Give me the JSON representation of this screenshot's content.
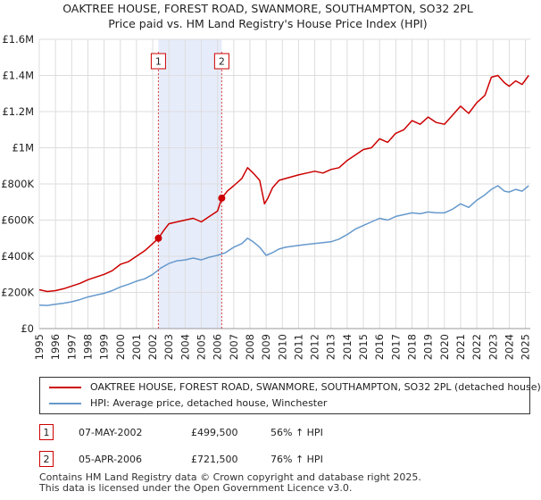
{
  "chart_data": {
    "type": "line",
    "title": "OAKTREE HOUSE, FOREST ROAD, SWANMORE, SOUTHAMPTON, SO32 2PL",
    "subtitle": "Price paid vs. HM Land Registry's House Price Index (HPI)",
    "xlabel": "",
    "ylabel": "",
    "xlim": [
      1995,
      2025.3
    ],
    "ylim": [
      0,
      1600000
    ],
    "grid": true,
    "x_ticks": [
      1995,
      1996,
      1997,
      1998,
      1999,
      2000,
      2001,
      2002,
      2003,
      2004,
      2005,
      2006,
      2007,
      2008,
      2009,
      2010,
      2011,
      2012,
      2013,
      2014,
      2015,
      2016,
      2017,
      2018,
      2019,
      2020,
      2021,
      2022,
      2023,
      2024,
      2025
    ],
    "x_tick_labels": [
      "1995",
      "1996",
      "1997",
      "1998",
      "1999",
      "2000",
      "2001",
      "2002",
      "2003",
      "2004",
      "2005",
      "2006",
      "2007",
      "2008",
      "2009",
      "2010",
      "2011",
      "2012",
      "2013",
      "2014",
      "2015",
      "2016",
      "2017",
      "2018",
      "2019",
      "2020",
      "2021",
      "2022",
      "2023",
      "2024",
      "2025"
    ],
    "y_ticks": [
      0,
      200000,
      400000,
      600000,
      800000,
      1000000,
      1200000,
      1400000,
      1600000
    ],
    "y_tick_labels": [
      "£0",
      "£200K",
      "£400K",
      "£600K",
      "£800K",
      "£1M",
      "£1.2M",
      "£1.4M",
      "£1.6M"
    ],
    "shaded_region": [
      2002.35,
      2006.26
    ],
    "series": [
      {
        "name": "OAKTREE HOUSE, FOREST ROAD, SWANMORE, SOUTHAMPTON, SO32 2PL (detached house)",
        "color": "#cc0000",
        "x": [
          1995.0,
          1995.5,
          1996.0,
          1996.5,
          1997.0,
          1997.5,
          1998.0,
          1998.5,
          1999.0,
          1999.5,
          2000.0,
          2000.5,
          2001.0,
          2001.5,
          2002.0,
          2002.35,
          2002.7,
          2003.0,
          2003.5,
          2004.0,
          2004.5,
          2005.0,
          2005.5,
          2006.0,
          2006.26,
          2006.6,
          2007.0,
          2007.5,
          2007.85,
          2008.2,
          2008.6,
          2008.9,
          2009.1,
          2009.4,
          2009.8,
          2010.2,
          2010.6,
          2011.0,
          2011.5,
          2012.0,
          2012.5,
          2013.0,
          2013.5,
          2014.0,
          2014.5,
          2015.0,
          2015.5,
          2016.0,
          2016.5,
          2017.0,
          2017.5,
          2018.0,
          2018.5,
          2019.0,
          2019.5,
          2020.0,
          2020.5,
          2021.0,
          2021.5,
          2022.0,
          2022.5,
          2022.9,
          2023.3,
          2023.7,
          2024.0,
          2024.4,
          2024.8,
          2025.2
        ],
        "y": [
          215000,
          205000,
          210000,
          220000,
          235000,
          250000,
          270000,
          285000,
          300000,
          320000,
          355000,
          370000,
          400000,
          430000,
          470000,
          499500,
          545000,
          580000,
          590000,
          600000,
          610000,
          590000,
          620000,
          650000,
          721500,
          760000,
          790000,
          830000,
          890000,
          860000,
          820000,
          690000,
          720000,
          780000,
          820000,
          830000,
          840000,
          850000,
          860000,
          870000,
          860000,
          880000,
          890000,
          930000,
          960000,
          990000,
          1000000,
          1050000,
          1030000,
          1080000,
          1100000,
          1150000,
          1130000,
          1170000,
          1140000,
          1130000,
          1180000,
          1230000,
          1190000,
          1250000,
          1290000,
          1390000,
          1400000,
          1360000,
          1340000,
          1370000,
          1350000,
          1400000
        ]
      },
      {
        "name": "HPI: Average price, detached house, Winchester",
        "color": "#6699cc",
        "x": [
          1995.0,
          1995.5,
          1996.0,
          1996.5,
          1997.0,
          1997.5,
          1998.0,
          1998.5,
          1999.0,
          1999.5,
          2000.0,
          2000.5,
          2001.0,
          2001.5,
          2002.0,
          2002.5,
          2003.0,
          2003.5,
          2004.0,
          2004.5,
          2005.0,
          2005.5,
          2006.0,
          2006.5,
          2007.0,
          2007.5,
          2007.85,
          2008.2,
          2008.6,
          2009.0,
          2009.4,
          2009.8,
          2010.2,
          2010.6,
          2011.0,
          2011.5,
          2012.0,
          2012.5,
          2013.0,
          2013.5,
          2014.0,
          2014.5,
          2015.0,
          2015.5,
          2016.0,
          2016.5,
          2017.0,
          2017.5,
          2018.0,
          2018.5,
          2019.0,
          2019.5,
          2020.0,
          2020.5,
          2021.0,
          2021.5,
          2022.0,
          2022.5,
          2022.9,
          2023.3,
          2023.7,
          2024.0,
          2024.4,
          2024.8,
          2025.2
        ],
        "y": [
          130000,
          128000,
          135000,
          140000,
          148000,
          160000,
          175000,
          185000,
          195000,
          210000,
          230000,
          245000,
          262000,
          275000,
          300000,
          335000,
          360000,
          375000,
          380000,
          390000,
          380000,
          395000,
          405000,
          420000,
          450000,
          470000,
          500000,
          480000,
          450000,
          405000,
          420000,
          440000,
          450000,
          455000,
          460000,
          465000,
          470000,
          475000,
          480000,
          495000,
          520000,
          550000,
          570000,
          590000,
          610000,
          600000,
          620000,
          630000,
          640000,
          635000,
          645000,
          640000,
          640000,
          660000,
          690000,
          670000,
          710000,
          740000,
          770000,
          790000,
          760000,
          755000,
          770000,
          760000,
          790000
        ]
      }
    ],
    "markers": [
      {
        "label": "1",
        "x": 2002.35,
        "y": 499500
      },
      {
        "label": "2",
        "x": 2006.26,
        "y": 721500
      }
    ]
  },
  "legend": {
    "line1": "OAKTREE HOUSE, FOREST ROAD, SWANMORE, SOUTHAMPTON, SO32 2PL (detached house)",
    "line2": "HPI: Average price, detached house, Winchester"
  },
  "transactions": [
    {
      "label": "1",
      "date": "07-MAY-2002",
      "price": "£499,500",
      "hpi": "56% ↑ HPI"
    },
    {
      "label": "2",
      "date": "05-APR-2006",
      "price": "£721,500",
      "hpi": "76% ↑ HPI"
    }
  ],
  "footer": {
    "line1": "Contains HM Land Registry data © Crown copyright and database right 2025.",
    "line2": "This data is licensed under the Open Government Licence v3.0."
  }
}
